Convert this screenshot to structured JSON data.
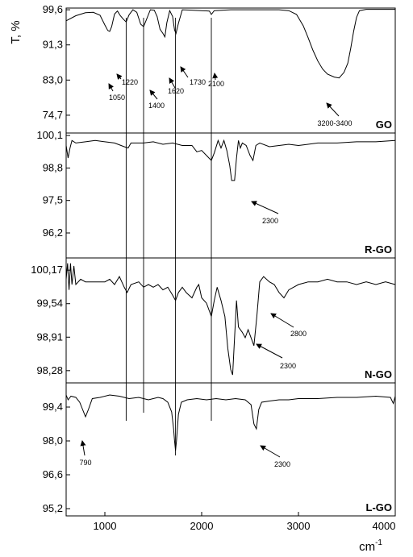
{
  "chart_data": {
    "type": "line",
    "x_range": [
      600,
      4000
    ],
    "xlabel": "cm",
    "xlabel_superscript": "-1",
    "ylabel": "T, %",
    "x_ticks": [
      "1000",
      "2000",
      "3000",
      "4000"
    ],
    "x_tick_values": [
      1000,
      2000,
      3000,
      4000
    ],
    "grid": false,
    "vertical_guides": [
      1220,
      1400,
      1730,
      2100
    ],
    "panels": [
      {
        "name": "GO",
        "ylim": [
          70.5,
          100.0
        ],
        "y_ticks": [
          "99,6",
          "91,3",
          "83,0",
          "74,7"
        ],
        "y_tick_values": [
          99.6,
          91.3,
          83.0,
          74.7
        ],
        "series": [
          {
            "points": [
              [
                600,
                97.0
              ],
              [
                700,
                98.2
              ],
              [
                800,
                98.9
              ],
              [
                880,
                99.0
              ],
              [
                950,
                98.3
              ],
              [
                1000,
                96.0
              ],
              [
                1030,
                94.7
              ],
              [
                1050,
                94.5
              ],
              [
                1070,
                95.6
              ],
              [
                1100,
                98.6
              ],
              [
                1130,
                99.3
              ],
              [
                1160,
                98.2
              ],
              [
                1190,
                97.4
              ],
              [
                1220,
                96.7
              ],
              [
                1250,
                98.4
              ],
              [
                1290,
                99.6
              ],
              [
                1330,
                99.0
              ],
              [
                1370,
                96.2
              ],
              [
                1400,
                95.6
              ],
              [
                1430,
                97.3
              ],
              [
                1470,
                99.6
              ],
              [
                1510,
                99.5
              ],
              [
                1540,
                98.0
              ],
              [
                1570,
                95.0
              ],
              [
                1600,
                94.0
              ],
              [
                1620,
                93.2
              ],
              [
                1640,
                96.5
              ],
              [
                1670,
                99.4
              ],
              [
                1700,
                98.0
              ],
              [
                1720,
                94.8
              ],
              [
                1735,
                94.0
              ],
              [
                1760,
                96.4
              ],
              [
                1800,
                99.6
              ],
              [
                1900,
                99.5
              ],
              [
                2000,
                99.4
              ],
              [
                2080,
                99.3
              ],
              [
                2100,
                98.5
              ],
              [
                2130,
                99.4
              ],
              [
                2300,
                99.6
              ],
              [
                2600,
                99.6
              ],
              [
                2800,
                99.6
              ],
              [
                2900,
                99.4
              ],
              [
                2980,
                98.5
              ],
              [
                3050,
                95.8
              ],
              [
                3100,
                93.0
              ],
              [
                3150,
                90.0
              ],
              [
                3200,
                87.5
              ],
              [
                3250,
                85.6
              ],
              [
                3300,
                84.4
              ],
              [
                3370,
                83.7
              ],
              [
                3420,
                83.5
              ],
              [
                3470,
                84.8
              ],
              [
                3510,
                87.0
              ],
              [
                3540,
                90.5
              ],
              [
                3570,
                94.5
              ],
              [
                3600,
                97.8
              ],
              [
                3630,
                99.4
              ],
              [
                3700,
                99.7
              ],
              [
                3850,
                99.7
              ],
              [
                4000,
                99.7
              ]
            ]
          }
        ],
        "annotations": [
          "1050",
          "1220",
          "1400",
          "1620",
          "1730",
          "2100",
          "3200-3400"
        ]
      },
      {
        "name": "R-GO",
        "ylim": [
          95.2,
          100.2
        ],
        "y_ticks": [
          "100,1",
          "98,8",
          "97,5",
          "96,2"
        ],
        "y_tick_values": [
          100.1,
          98.8,
          97.5,
          96.2
        ],
        "series": [
          {
            "points": [
              [
                600,
                99.7
              ],
              [
                620,
                99.2
              ],
              [
                640,
                99.6
              ],
              [
                660,
                99.9
              ],
              [
                700,
                99.8
              ],
              [
                800,
                99.85
              ],
              [
                900,
                99.9
              ],
              [
                1000,
                99.85
              ],
              [
                1100,
                99.8
              ],
              [
                1200,
                99.65
              ],
              [
                1240,
                99.6
              ],
              [
                1270,
                99.8
              ],
              [
                1400,
                99.8
              ],
              [
                1500,
                99.85
              ],
              [
                1600,
                99.75
              ],
              [
                1700,
                99.8
              ],
              [
                1800,
                99.7
              ],
              [
                1900,
                99.7
              ],
              [
                1950,
                99.45
              ],
              [
                2000,
                99.5
              ],
              [
                2050,
                99.3
              ],
              [
                2100,
                99.1
              ],
              [
                2130,
                99.4
              ],
              [
                2170,
                99.9
              ],
              [
                2200,
                99.6
              ],
              [
                2230,
                99.9
              ],
              [
                2260,
                99.5
              ],
              [
                2290,
                98.9
              ],
              [
                2310,
                98.3
              ],
              [
                2340,
                98.3
              ],
              [
                2360,
                99.2
              ],
              [
                2380,
                99.9
              ],
              [
                2400,
                99.6
              ],
              [
                2420,
                99.8
              ],
              [
                2460,
                99.7
              ],
              [
                2500,
                99.3
              ],
              [
                2530,
                99.1
              ],
              [
                2560,
                99.7
              ],
              [
                2600,
                99.8
              ],
              [
                2700,
                99.65
              ],
              [
                2800,
                99.7
              ],
              [
                2900,
                99.75
              ],
              [
                3000,
                99.7
              ],
              [
                3200,
                99.8
              ],
              [
                3400,
                99.8
              ],
              [
                3600,
                99.85
              ],
              [
                3800,
                99.85
              ],
              [
                4000,
                99.9
              ]
            ]
          }
        ],
        "annotations": [
          "2300"
        ]
      },
      {
        "name": "N-GO",
        "ylim": [
          98.05,
          100.4
        ],
        "y_ticks": [
          "100,17",
          "99,54",
          "98,91",
          "98,28"
        ],
        "y_tick_values": [
          100.17,
          99.54,
          98.91,
          98.28
        ],
        "series": [
          {
            "points": [
              [
                600,
                100.0
              ],
              [
                615,
                100.3
              ],
              [
                630,
                99.8
              ],
              [
                645,
                100.3
              ],
              [
                660,
                99.9
              ],
              [
                680,
                100.25
              ],
              [
                700,
                99.9
              ],
              [
                750,
                100.0
              ],
              [
                800,
                99.95
              ],
              [
                900,
                99.95
              ],
              [
                1000,
                99.95
              ],
              [
                1050,
                100.0
              ],
              [
                1100,
                99.9
              ],
              [
                1150,
                100.05
              ],
              [
                1200,
                99.85
              ],
              [
                1230,
                99.75
              ],
              [
                1270,
                99.9
              ],
              [
                1350,
                99.95
              ],
              [
                1400,
                99.85
              ],
              [
                1450,
                99.9
              ],
              [
                1500,
                99.85
              ],
              [
                1550,
                99.9
              ],
              [
                1600,
                99.8
              ],
              [
                1650,
                99.85
              ],
              [
                1700,
                99.7
              ],
              [
                1730,
                99.6
              ],
              [
                1760,
                99.75
              ],
              [
                1800,
                99.85
              ],
              [
                1840,
                99.75
              ],
              [
                1870,
                99.7
              ],
              [
                1900,
                99.65
              ],
              [
                1950,
                99.85
              ],
              [
                1970,
                99.9
              ],
              [
                2000,
                99.65
              ],
              [
                2050,
                99.55
              ],
              [
                2080,
                99.4
              ],
              [
                2100,
                99.3
              ],
              [
                2130,
                99.6
              ],
              [
                2160,
                99.85
              ],
              [
                2200,
                99.6
              ],
              [
                2240,
                99.3
              ],
              [
                2270,
                98.7
              ],
              [
                2300,
                98.3
              ],
              [
                2320,
                98.2
              ],
              [
                2340,
                98.9
              ],
              [
                2360,
                99.6
              ],
              [
                2380,
                99.1
              ],
              [
                2420,
                99.0
              ],
              [
                2450,
                98.9
              ],
              [
                2480,
                99.05
              ],
              [
                2510,
                98.9
              ],
              [
                2540,
                98.75
              ],
              [
                2570,
                99.3
              ],
              [
                2600,
                99.95
              ],
              [
                2640,
                100.05
              ],
              [
                2700,
                99.95
              ],
              [
                2750,
                99.9
              ],
              [
                2800,
                99.75
              ],
              [
                2850,
                99.65
              ],
              [
                2900,
                99.8
              ],
              [
                3000,
                99.9
              ],
              [
                3100,
                99.95
              ],
              [
                3200,
                99.95
              ],
              [
                3300,
                100.0
              ],
              [
                3400,
                99.95
              ],
              [
                3500,
                99.95
              ],
              [
                3600,
                99.9
              ],
              [
                3700,
                99.95
              ],
              [
                3800,
                99.9
              ],
              [
                3900,
                99.95
              ],
              [
                4000,
                99.9
              ]
            ]
          }
        ],
        "annotations": [
          "2800",
          "2300"
        ]
      },
      {
        "name": "L-GO",
        "ylim": [
          94.9,
          100.4
        ],
        "y_ticks": [
          "99,4",
          "98,0",
          "96,6",
          "95,2"
        ],
        "y_tick_values": [
          99.4,
          98.0,
          96.6,
          95.2
        ],
        "series": [
          {
            "points": [
              [
                600,
                99.9
              ],
              [
                620,
                99.7
              ],
              [
                650,
                99.85
              ],
              [
                700,
                99.8
              ],
              [
                740,
                99.6
              ],
              [
                770,
                99.3
              ],
              [
                800,
                99.0
              ],
              [
                830,
                99.3
              ],
              [
                870,
                99.75
              ],
              [
                950,
                99.8
              ],
              [
                1050,
                99.9
              ],
              [
                1150,
                99.85
              ],
              [
                1250,
                99.75
              ],
              [
                1350,
                99.8
              ],
              [
                1450,
                99.7
              ],
              [
                1550,
                99.8
              ],
              [
                1600,
                99.75
              ],
              [
                1650,
                99.6
              ],
              [
                1690,
                99.2
              ],
              [
                1710,
                98.5
              ],
              [
                1720,
                98.0
              ],
              [
                1730,
                97.6
              ],
              [
                1740,
                98.0
              ],
              [
                1760,
                99.1
              ],
              [
                1790,
                99.6
              ],
              [
                1850,
                99.7
              ],
              [
                1950,
                99.75
              ],
              [
                2050,
                99.7
              ],
              [
                2150,
                99.75
              ],
              [
                2250,
                99.7
              ],
              [
                2350,
                99.75
              ],
              [
                2450,
                99.7
              ],
              [
                2510,
                99.5
              ],
              [
                2540,
                98.7
              ],
              [
                2565,
                98.5
              ],
              [
                2590,
                99.3
              ],
              [
                2620,
                99.6
              ],
              [
                2700,
                99.65
              ],
              [
                2800,
                99.7
              ],
              [
                2900,
                99.7
              ],
              [
                3000,
                99.75
              ],
              [
                3200,
                99.75
              ],
              [
                3400,
                99.8
              ],
              [
                3600,
                99.8
              ],
              [
                3800,
                99.85
              ],
              [
                3950,
                99.8
              ],
              [
                3980,
                99.55
              ],
              [
                4000,
                99.85
              ]
            ]
          }
        ],
        "annotations": [
          "790",
          "2300"
        ]
      }
    ]
  }
}
